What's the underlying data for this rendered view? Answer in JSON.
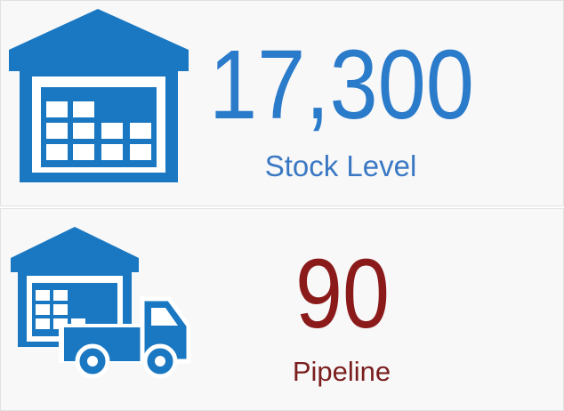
{
  "cards": [
    {
      "value": "17,300",
      "label": "Stock Level"
    },
    {
      "value": "90",
      "label": "Pipeline"
    }
  ]
}
